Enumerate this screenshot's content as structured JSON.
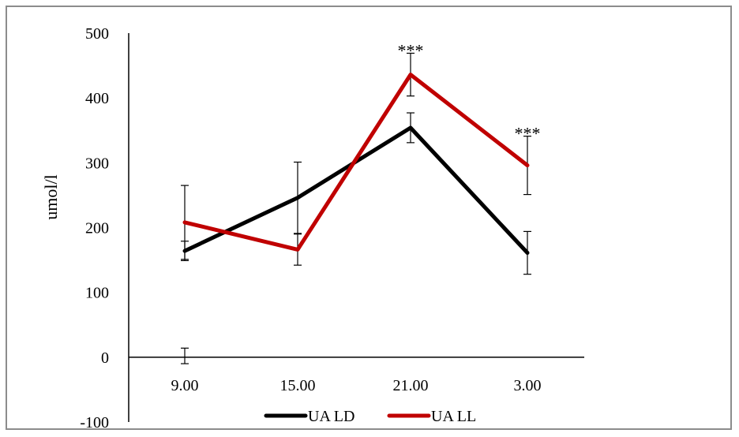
{
  "chart_data": {
    "type": "line",
    "title": "",
    "xlabel": "",
    "ylabel": "umol/l",
    "categories": [
      "9.00",
      "15.00",
      "21.00",
      "3.00"
    ],
    "ylim": [
      -100,
      500
    ],
    "yticks": [
      "-100",
      "0",
      "100",
      "200",
      "300",
      "400",
      "500"
    ],
    "grid": false,
    "legend_position": "bottom",
    "series": [
      {
        "name": "UA LD",
        "color": "#000000",
        "values": [
          164,
          246,
          354,
          161
        ],
        "error": [
          15,
          55,
          23,
          33
        ]
      },
      {
        "name": "UA LL",
        "color": "#c00000",
        "values": [
          208,
          166,
          436,
          296
        ],
        "error": [
          57,
          24,
          33,
          45
        ]
      }
    ],
    "annotations": [
      {
        "category": "21.00",
        "text": "***"
      },
      {
        "category": "3.00",
        "text": "***"
      }
    ],
    "extra_error_bar": {
      "category": "9.00",
      "value": 2,
      "error": 12
    }
  }
}
